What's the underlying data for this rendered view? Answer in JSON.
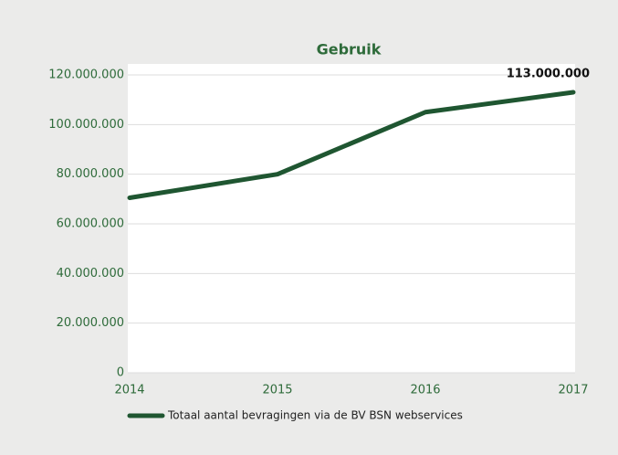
{
  "chart_data": {
    "type": "line",
    "title": "Gebruik",
    "categories": [
      "2014",
      "2015",
      "2016",
      "2017"
    ],
    "series": [
      {
        "name": "Totaal aantal bevragingen via de BV BSN webservices",
        "color": "#1f5631",
        "values": [
          70500000,
          80000000,
          105000000,
          113000000
        ],
        "value_labels": [
          null,
          null,
          null,
          "113.000.000"
        ]
      }
    ],
    "ylim": [
      0,
      120000000
    ],
    "yticks": [
      0,
      {
        "value": 20000000,
        "label": "20.000.000"
      },
      {
        "value": 40000000,
        "label": "40.000.000"
      },
      {
        "value": 60000000,
        "label": "60.000.000"
      },
      {
        "value": 80000000,
        "label": "80.000.000"
      },
      {
        "value": 100000000,
        "label": "100.000.000"
      },
      {
        "value": 120000000,
        "label": "120.000.000"
      }
    ],
    "grid": true,
    "legend": "bottom"
  }
}
